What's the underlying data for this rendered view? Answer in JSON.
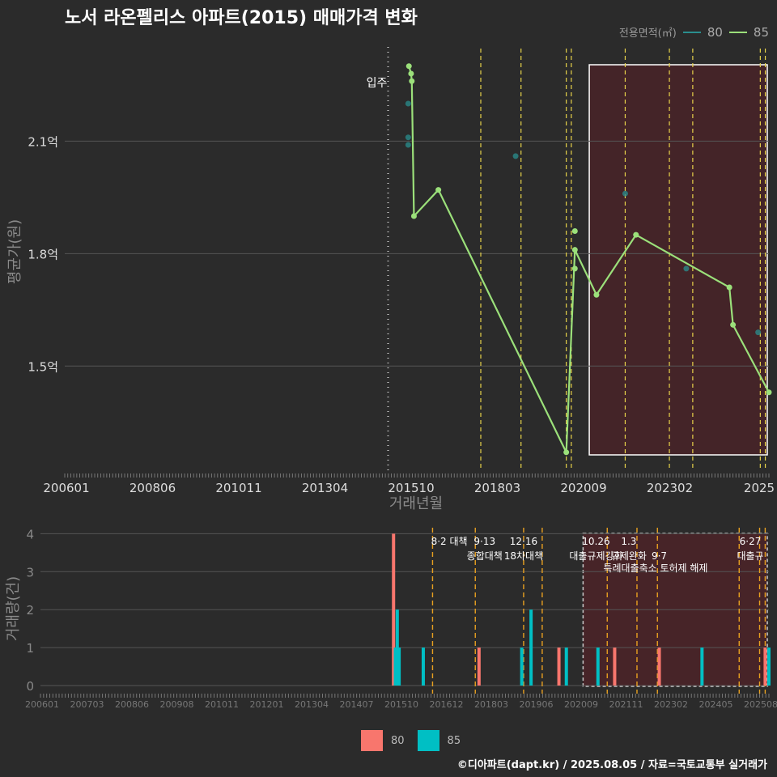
{
  "title": "노서 라온펠리스 아파트(2015) 매매가격 변화",
  "legend": {
    "title": "전용면적(㎡)",
    "items": [
      {
        "label": "80",
        "line_color": "#2a8f8f",
        "bar_color": "#f8766d"
      },
      {
        "label": "85",
        "line_color": "#9be07a",
        "bar_color": "#00bfc4"
      }
    ]
  },
  "footer": "©디아파트(dapt.kr) / 2025.08.05 / 자료=국토교통부 실거래가",
  "move_in_label": "입주",
  "chart_data": [
    {
      "type": "line",
      "title": "노서 라온펠리스 아파트(2015) 매매가격 변화",
      "xlabel": "거래년월",
      "ylabel": "평균가(원)",
      "x_ticks": [
        "200601",
        "200806",
        "201011",
        "201304",
        "201510",
        "201803",
        "202009",
        "202302",
        "2025"
      ],
      "x_range": [
        2006.0,
        2025.6
      ],
      "y_ticks": [
        {
          "value": 1.5,
          "label": "1.5억"
        },
        {
          "value": 1.8,
          "label": "1.8억"
        },
        {
          "value": 2.1,
          "label": "2.1억"
        }
      ],
      "y_range": [
        1.22,
        2.39
      ],
      "move_in": 2015.0,
      "policy_lines": [
        2017.58,
        2018.7,
        2019.96,
        2020.1,
        2021.6,
        2022.83,
        2023.48,
        2025.36,
        2025.5
      ],
      "highlight_range": [
        2020.6,
        2025.6
      ],
      "series": [
        {
          "name": "80",
          "points": [
            {
              "x": 2015.56,
              "y": 2.2
            },
            {
              "x": 2015.56,
              "y": 2.11
            },
            {
              "x": 2015.56,
              "y": 2.09
            },
            {
              "x": 2018.55,
              "y": 2.06
            },
            {
              "x": 2021.6,
              "y": 1.96
            },
            {
              "x": 2023.3,
              "y": 1.76
            },
            {
              "x": 2025.3,
              "y": 1.59
            }
          ]
        },
        {
          "name": "85",
          "line": [
            {
              "x": 2015.58,
              "y": 2.3
            },
            {
              "x": 2015.64,
              "y": 2.28
            },
            {
              "x": 2015.66,
              "y": 2.26
            },
            {
              "x": 2015.72,
              "y": 1.9
            },
            {
              "x": 2016.4,
              "y": 1.97
            },
            {
              "x": 2019.96,
              "y": 1.27
            },
            {
              "x": 2020.2,
              "y": 1.81
            },
            {
              "x": 2020.8,
              "y": 1.69
            },
            {
              "x": 2021.9,
              "y": 1.85
            },
            {
              "x": 2024.5,
              "y": 1.71
            },
            {
              "x": 2024.6,
              "y": 1.61
            },
            {
              "x": 2025.6,
              "y": 1.43
            }
          ],
          "extra_points": [
            {
              "x": 2020.2,
              "y": 1.86
            },
            {
              "x": 2020.2,
              "y": 1.76
            }
          ]
        }
      ]
    },
    {
      "type": "bar",
      "ylabel": "거래량(건)",
      "x_ticks": [
        "200601",
        "200703",
        "200806",
        "200908",
        "201011",
        "201201",
        "201304",
        "201407",
        "201510",
        "201612",
        "201803",
        "201906",
        "202009",
        "202111",
        "202302",
        "202405",
        "202508"
      ],
      "x_range": [
        2006.0,
        2025.6
      ],
      "y_ticks": [
        0,
        1,
        2,
        3,
        4
      ],
      "y_range": [
        0,
        4.2
      ],
      "highlight_range": [
        2020.6,
        2025.6
      ],
      "policy_lines": [
        2016.55,
        2017.7,
        2019.0,
        2019.5,
        2021.25,
        2022.05,
        2022.6,
        2024.8,
        2025.35,
        2025.5
      ],
      "annotations": [
        {
          "x": 2017.0,
          "line1": "8·2 대책",
          "line2": ""
        },
        {
          "x": 2017.95,
          "line1": "9·13",
          "line2": "종합대책"
        },
        {
          "x": 2019.0,
          "line1": "12·16",
          "line2": "18차대책"
        },
        {
          "x": 2020.95,
          "line1": "10.26",
          "line2": "대출규제강화"
        },
        {
          "x": 2021.83,
          "line1": "1.3",
          "line2": "규제완화"
        },
        {
          "x": 2022.65,
          "line1": "",
          "line2": "9·7"
        },
        {
          "x": 2022.55,
          "line1": "",
          "line2": "특례대출축소 토허제 해제",
          "row": 3
        },
        {
          "x": 2025.1,
          "line1": "6·27",
          "line2": "대출규"
        }
      ],
      "series": [
        {
          "name": "80",
          "bars": [
            {
              "x": 2015.5,
              "v": 4
            },
            {
              "x": 2017.8,
              "v": 1
            },
            {
              "x": 2019.95,
              "v": 1
            },
            {
              "x": 2021.45,
              "v": 1
            },
            {
              "x": 2022.65,
              "v": 1
            },
            {
              "x": 2025.5,
              "v": 1
            }
          ]
        },
        {
          "name": "85",
          "bars": [
            {
              "x": 2015.55,
              "v": 1
            },
            {
              "x": 2015.6,
              "v": 2
            },
            {
              "x": 2015.65,
              "v": 1
            },
            {
              "x": 2016.3,
              "v": 1
            },
            {
              "x": 2018.95,
              "v": 1
            },
            {
              "x": 2019.2,
              "v": 2
            },
            {
              "x": 2020.15,
              "v": 1
            },
            {
              "x": 2021.0,
              "v": 1
            },
            {
              "x": 2023.8,
              "v": 1
            },
            {
              "x": 2025.6,
              "v": 1
            }
          ]
        }
      ]
    }
  ]
}
